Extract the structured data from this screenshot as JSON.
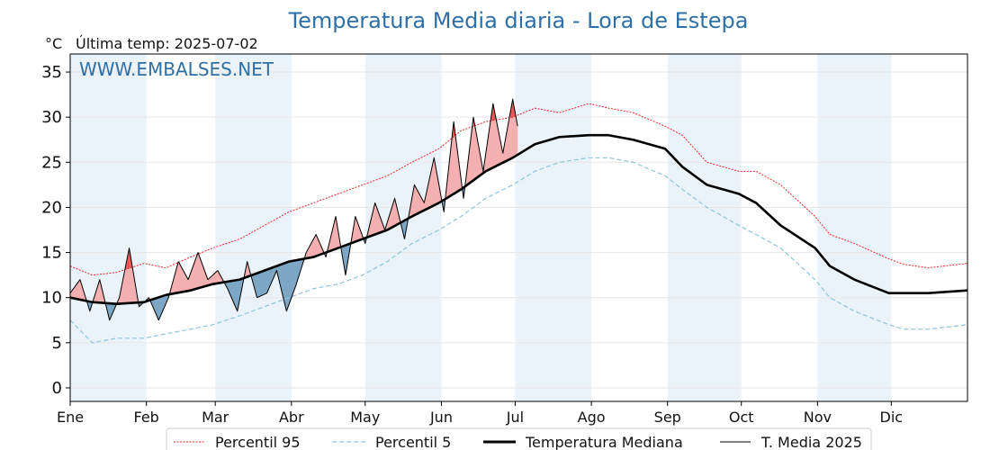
{
  "page": {
    "title": "Temperatura Media diaria - Lora de Estepa",
    "unit": "°C",
    "last_temp": "Última temp: 2025-07-02",
    "watermark": "WWW.EMBALSES.NET"
  },
  "chart_data": {
    "type": "line",
    "title": "Temperatura Media diaria - Lora de Estepa",
    "ylabel": "°C",
    "ylim": [
      -1.5,
      37
    ],
    "yticks": [
      0,
      5,
      10,
      15,
      20,
      25,
      30,
      35
    ],
    "xlim": [
      1,
      366
    ],
    "months": [
      {
        "label": "Ene",
        "start": 1
      },
      {
        "label": "Feb",
        "start": 32
      },
      {
        "label": "Mar",
        "start": 60
      },
      {
        "label": "Abr",
        "start": 91
      },
      {
        "label": "May",
        "start": 121
      },
      {
        "label": "Jun",
        "start": 152
      },
      {
        "label": "Jul",
        "start": 182
      },
      {
        "label": "Ago",
        "start": 213
      },
      {
        "label": "Sep",
        "start": 244
      },
      {
        "label": "Oct",
        "start": 274
      },
      {
        "label": "Nov",
        "start": 305
      },
      {
        "label": "Dic",
        "start": 335
      }
    ],
    "grid": true,
    "legend_position": "bottom",
    "colors": {
      "p95": "#e8262b",
      "p5": "#8fc4d8",
      "median": "#000000",
      "current": "#000000",
      "above_fill": "#f4b0b0",
      "above_fill_strong": "#e8595c",
      "below_fill": "#7ea7c6",
      "band_shade": "#eaf2fa",
      "title": "#2e6fa6"
    },
    "series": [
      {
        "key": "p95",
        "name": "Percentil 95",
        "x": [
          1,
          10,
          20,
          31,
          40,
          50,
          59,
          70,
          80,
          90,
          100,
          110,
          120,
          130,
          140,
          151,
          160,
          170,
          181,
          190,
          200,
          212,
          220,
          230,
          243,
          250,
          260,
          273,
          280,
          290,
          304,
          310,
          320,
          334,
          340,
          350,
          366
        ],
        "values": [
          13.5,
          12.5,
          12.8,
          13.8,
          13.3,
          14.5,
          15.5,
          16.5,
          18,
          19.5,
          20.5,
          21.5,
          22.5,
          23.5,
          25,
          26.5,
          28.5,
          29.5,
          30,
          31,
          30.5,
          31.5,
          31,
          30.5,
          29,
          28,
          25,
          24,
          24,
          22.5,
          19,
          17,
          16,
          14.3,
          13.7,
          13.3,
          13.8
        ]
      },
      {
        "key": "p5",
        "name": "Percentil 5",
        "x": [
          1,
          10,
          20,
          31,
          40,
          50,
          59,
          70,
          80,
          90,
          100,
          110,
          120,
          130,
          140,
          151,
          160,
          170,
          181,
          190,
          200,
          212,
          220,
          230,
          243,
          250,
          260,
          273,
          280,
          290,
          304,
          310,
          320,
          334,
          340,
          350,
          366
        ],
        "values": [
          7.5,
          5,
          5.5,
          5.5,
          6,
          6.5,
          7,
          8,
          9,
          10,
          11,
          11.5,
          12.5,
          14,
          16,
          17.5,
          19,
          21,
          22.5,
          24,
          25,
          25.5,
          25.5,
          25,
          23.5,
          22,
          20,
          18,
          17,
          15.5,
          12,
          10,
          8.5,
          7,
          6.5,
          6.5,
          7
        ]
      },
      {
        "key": "median",
        "name": "Temperatura Mediana",
        "x": [
          1,
          10,
          20,
          31,
          40,
          50,
          59,
          70,
          80,
          90,
          100,
          110,
          120,
          130,
          140,
          151,
          160,
          170,
          181,
          190,
          200,
          212,
          220,
          230,
          243,
          250,
          260,
          273,
          280,
          290,
          304,
          310,
          320,
          334,
          340,
          350,
          366
        ],
        "values": [
          10,
          9.5,
          9.3,
          9.5,
          10.3,
          10.8,
          11.5,
          12,
          13,
          14,
          14.5,
          15.5,
          16.5,
          17.5,
          19,
          20.5,
          22,
          24,
          25.5,
          27,
          27.8,
          28,
          28,
          27.5,
          26.5,
          24.5,
          22.5,
          21.5,
          20.5,
          18,
          15.5,
          13.5,
          12,
          10.5,
          10.5,
          10.5,
          10.8
        ]
      },
      {
        "key": "current",
        "name": "T. Media 2025",
        "x": [
          1,
          5,
          9,
          13,
          17,
          21,
          25,
          29,
          33,
          37,
          41,
          45,
          49,
          53,
          57,
          61,
          65,
          69,
          73,
          77,
          81,
          85,
          89,
          93,
          97,
          101,
          105,
          109,
          113,
          117,
          121,
          125,
          129,
          133,
          137,
          141,
          145,
          149,
          153,
          157,
          161,
          165,
          169,
          173,
          177,
          181,
          183
        ],
        "values": [
          10.5,
          12,
          8.5,
          12,
          7.5,
          10,
          15.5,
          9,
          10,
          7.5,
          10,
          14,
          12,
          15,
          12,
          13,
          11,
          8.5,
          14,
          10,
          10.5,
          13,
          8.5,
          11.5,
          15,
          17,
          14.5,
          19,
          12.5,
          19,
          16,
          20.5,
          17.5,
          21,
          16.5,
          22.5,
          20.5,
          25.5,
          19.5,
          29.5,
          21,
          30,
          24,
          31.5,
          26,
          32,
          29
        ]
      }
    ]
  }
}
